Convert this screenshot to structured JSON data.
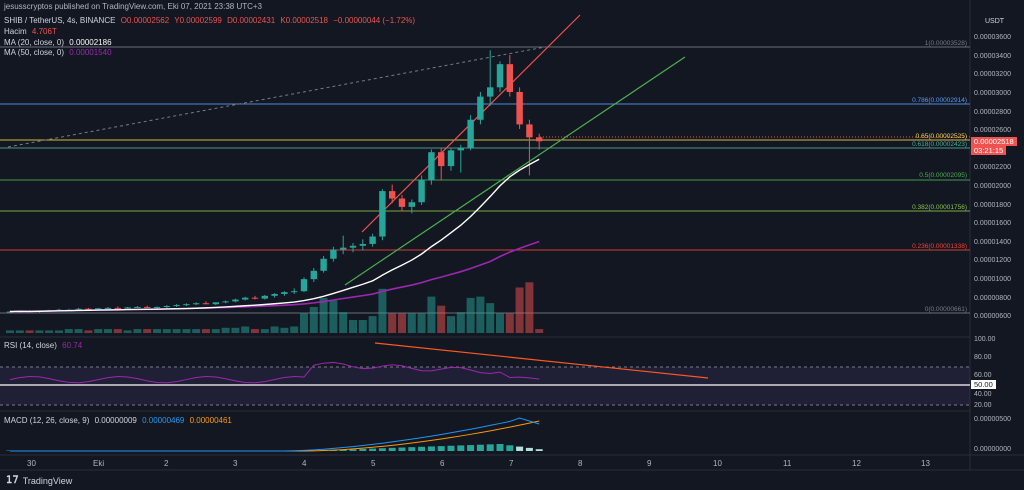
{
  "header": {
    "publisher": "jesusscryptos published on TradingView.com, Eki 07, 2021 23:38 UTC+3",
    "symbol_line": {
      "symbol": "SHIB / TetherUS, 4s, BINANCE",
      "open": "O0.00002562",
      "high": "Y0.00002599",
      "low": "D0.00002431",
      "close": "K0.00002518",
      "change": "−0.00000044 (−1.72%)"
    },
    "volume_label": "Hacim",
    "volume_value": "4.706T",
    "ma20_label": "MA (20, close, 0)",
    "ma20_value": "0.00002186",
    "ma50_label": "MA (50, close, 0)",
    "ma50_value": "0.00001540"
  },
  "price_axis": {
    "currency": "USDT",
    "ticks": [
      "0.00003600",
      "0.00003400",
      "0.00003200",
      "0.00003000",
      "0.00002800",
      "0.00002600",
      "0.00002200",
      "0.00002000",
      "0.00001800",
      "0.00001600",
      "0.00001400",
      "0.00001200",
      "0.00001000",
      "0.00000800",
      "0.00000600"
    ],
    "current_price": "0.00002518",
    "countdown": "03:21:15"
  },
  "fibonacci": [
    {
      "label": "1(0.00003528)",
      "color": "#787b86"
    },
    {
      "label": "0.786(0.00002914)",
      "color": "#5b9cf6"
    },
    {
      "label": "0.65(0.00002525)",
      "color": "#f5d547"
    },
    {
      "label": "0.618(0.00002423)",
      "color": "#4caf9a"
    },
    {
      "label": "0.5(0.00002095)",
      "color": "#4caf50"
    },
    {
      "label": "0.382(0.00001756)",
      "color": "#8bc34a"
    },
    {
      "label": "0.236(0.00001338)",
      "color": "#f44336"
    },
    {
      "label": "0(0.00000661)",
      "color": "#787b86"
    }
  ],
  "rsi": {
    "label": "RSI (14, close)",
    "value": "60.74",
    "ticks": [
      "100.00",
      "80.00",
      "60.00",
      "50.00",
      "40.00",
      "20.00"
    ]
  },
  "macd": {
    "label": "MACD (12, 26, close, 9)",
    "v1": "0.00000009",
    "v2": "0.00000469",
    "v3": "0.00000461",
    "ticks": [
      "0.00000500",
      "0.00000000"
    ]
  },
  "x_axis": [
    "30",
    "Eki",
    "2",
    "3",
    "4",
    "5",
    "6",
    "7",
    "8",
    "9",
    "10",
    "11",
    "12",
    "13"
  ],
  "footer": {
    "brand": "TradingView"
  },
  "colors": {
    "up": "#26a69a",
    "down": "#ef5350",
    "ma20": "#ffffff",
    "ma50": "#9c27b0"
  },
  "chart_data": {
    "type": "candlestick",
    "candles": [
      [
        6.8,
        6.9,
        6.7,
        6.8
      ],
      [
        6.8,
        6.9,
        6.7,
        6.85
      ],
      [
        6.85,
        6.95,
        6.75,
        6.8
      ],
      [
        6.8,
        6.9,
        6.7,
        6.9
      ],
      [
        6.9,
        7.0,
        6.8,
        6.95
      ],
      [
        6.95,
        7.1,
        6.9,
        7.0
      ],
      [
        7.0,
        7.1,
        6.9,
        7.0
      ],
      [
        7.0,
        7.2,
        6.95,
        7.1
      ],
      [
        7.1,
        7.2,
        7.0,
        7.05
      ],
      [
        7.05,
        7.2,
        7.0,
        7.15
      ],
      [
        7.15,
        7.3,
        7.1,
        7.2
      ],
      [
        7.2,
        7.35,
        7.1,
        7.15
      ],
      [
        7.15,
        7.3,
        7.1,
        7.25
      ],
      [
        7.25,
        7.4,
        7.2,
        7.3
      ],
      [
        7.3,
        7.45,
        7.2,
        7.2
      ],
      [
        7.2,
        7.35,
        7.1,
        7.3
      ],
      [
        7.3,
        7.5,
        7.2,
        7.4
      ],
      [
        7.4,
        7.6,
        7.3,
        7.5
      ],
      [
        7.5,
        7.7,
        7.4,
        7.6
      ],
      [
        7.6,
        7.8,
        7.5,
        7.7
      ],
      [
        7.7,
        7.9,
        7.6,
        7.6
      ],
      [
        7.6,
        7.8,
        7.5,
        7.8
      ],
      [
        7.8,
        8.0,
        7.7,
        7.9
      ],
      [
        7.9,
        8.2,
        7.8,
        8.1
      ],
      [
        8.1,
        8.4,
        8.0,
        8.3
      ],
      [
        8.3,
        8.5,
        8.1,
        8.2
      ],
      [
        8.2,
        8.6,
        8.1,
        8.5
      ],
      [
        8.5,
        8.8,
        8.3,
        8.7
      ],
      [
        8.7,
        9.0,
        8.5,
        8.9
      ],
      [
        8.9,
        9.3,
        8.7,
        9.0
      ],
      [
        9.0,
        10.5,
        8.9,
        10.3
      ],
      [
        10.3,
        11.5,
        10.0,
        11.2
      ],
      [
        11.2,
        12.8,
        11.0,
        12.5
      ],
      [
        12.5,
        13.8,
        12.2,
        13.5
      ],
      [
        13.5,
        15.0,
        13.0,
        13.7
      ],
      [
        13.7,
        14.2,
        13.2,
        13.9
      ],
      [
        13.9,
        14.6,
        13.4,
        14.1
      ],
      [
        14.1,
        15.2,
        13.8,
        14.9
      ],
      [
        14.9,
        20.0,
        14.5,
        19.8
      ],
      [
        19.8,
        20.5,
        18.5,
        19.0
      ],
      [
        19.0,
        19.4,
        17.6,
        18.1
      ],
      [
        18.1,
        18.9,
        17.4,
        18.6
      ],
      [
        18.6,
        21.5,
        18.3,
        21.0
      ],
      [
        21.0,
        24.3,
        20.5,
        24.0
      ],
      [
        24.0,
        24.5,
        21.0,
        22.5
      ],
      [
        22.5,
        24.5,
        22.0,
        24.2
      ],
      [
        24.2,
        24.8,
        21.8,
        24.5
      ],
      [
        24.5,
        28.0,
        24.2,
        27.5
      ],
      [
        27.5,
        30.5,
        27.0,
        30.0
      ],
      [
        30.0,
        35.0,
        29.0,
        31.0
      ],
      [
        31.0,
        33.8,
        30.5,
        33.5
      ],
      [
        33.5,
        34.5,
        30.0,
        30.5
      ],
      [
        30.5,
        31.0,
        26.5,
        27.0
      ],
      [
        27.0,
        27.5,
        21.5,
        25.6
      ],
      [
        25.6,
        26.0,
        24.3,
        25.18
      ]
    ],
    "volume": [
      0.2,
      0.2,
      0.2,
      0.2,
      0.2,
      0.2,
      0.3,
      0.3,
      0.2,
      0.3,
      0.3,
      0.3,
      0.2,
      0.3,
      0.3,
      0.3,
      0.3,
      0.3,
      0.3,
      0.3,
      0.3,
      0.3,
      0.4,
      0.4,
      0.5,
      0.3,
      0.3,
      0.5,
      0.4,
      0.5,
      1.5,
      2.0,
      2.7,
      2.5,
      1.6,
      1.0,
      1.0,
      1.3,
      3.4,
      1.5,
      1.5,
      1.5,
      1.5,
      2.8,
      2.1,
      1.3,
      1.6,
      2.7,
      2.8,
      2.3,
      1.5,
      1.5,
      3.5,
      3.9,
      0.3
    ]
  }
}
